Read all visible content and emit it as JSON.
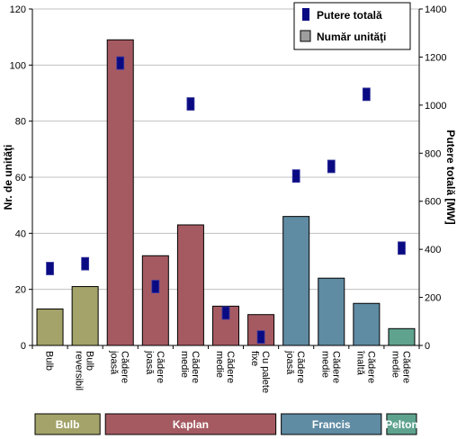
{
  "chart_data": {
    "type": "bar",
    "categories": [
      [
        "Bulb"
      ],
      [
        "Bulb",
        "reversibil"
      ],
      [
        "Cădere",
        "joasă"
      ],
      [
        "Cădere",
        "joasă"
      ],
      [
        "Cădere",
        "medie"
      ],
      [
        "Cădere",
        "medie"
      ],
      [
        "Cu palete",
        "fixe"
      ],
      [
        "Cădere",
        "joasă"
      ],
      [
        "Cădere",
        "medie"
      ],
      [
        "Cădere",
        "înaltă"
      ],
      [
        "Cădere",
        "medie"
      ]
    ],
    "series": [
      {
        "name": "Număr unităţi",
        "kind": "bar",
        "axis": "left",
        "values": [
          13,
          21,
          109,
          32,
          43,
          14,
          11,
          46,
          24,
          15,
          6
        ]
      },
      {
        "name": "Putere totală",
        "kind": "marker",
        "axis": "right",
        "values": [
          320,
          340,
          1175,
          245,
          1005,
          135,
          35,
          705,
          745,
          1045,
          405
        ]
      }
    ],
    "bar_colors": [
      "#a3a36a",
      "#a3a36a",
      "#a55a62",
      "#a55a62",
      "#a55a62",
      "#a55a62",
      "#a55a62",
      "#5f8ba3",
      "#5f8ba3",
      "#5f8ba3",
      "#5fa38e"
    ],
    "marker_color": "#0a0a82",
    "ylabel": "Nr. de unităţi",
    "y2label": "Putere totală [MW]",
    "ylim": [
      0,
      120
    ],
    "yticks": [
      0,
      20,
      40,
      60,
      80,
      100,
      120
    ],
    "y2lim": [
      0,
      1400
    ],
    "y2ticks": [
      0,
      200,
      400,
      600,
      800,
      1000,
      1200,
      1400
    ],
    "grid": true,
    "legend_position": "top-right",
    "groups": [
      {
        "label": "Bulb",
        "from": 0,
        "to": 1,
        "color": "#a3a36a"
      },
      {
        "label": "Kaplan",
        "from": 2,
        "to": 6,
        "color": "#a55a62"
      },
      {
        "label": "Francis",
        "from": 7,
        "to": 9,
        "color": "#5f8ba3"
      },
      {
        "label": "Pelton",
        "from": 10,
        "to": 10,
        "color": "#5fa38e"
      }
    ]
  }
}
